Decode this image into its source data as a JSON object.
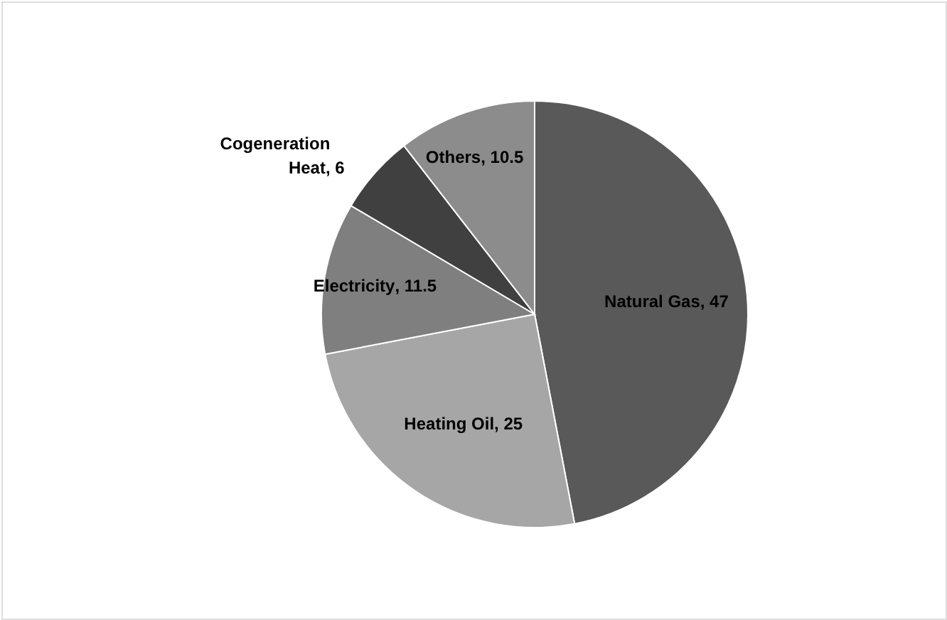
{
  "chart_data": {
    "type": "pie",
    "categories": [
      "Natural Gas",
      "Heating Oil",
      "Electricity",
      "Cogeneration Heat",
      "Others"
    ],
    "values": [
      47,
      25,
      11.5,
      6,
      10.5
    ],
    "colors": [
      "#595959",
      "#a6a6a6",
      "#7f7f7f",
      "#404040",
      "#8c8c8c"
    ],
    "value_labels": [
      ", 47",
      ", 25",
      ", 11.5",
      ", 6",
      ", 10.5"
    ]
  }
}
